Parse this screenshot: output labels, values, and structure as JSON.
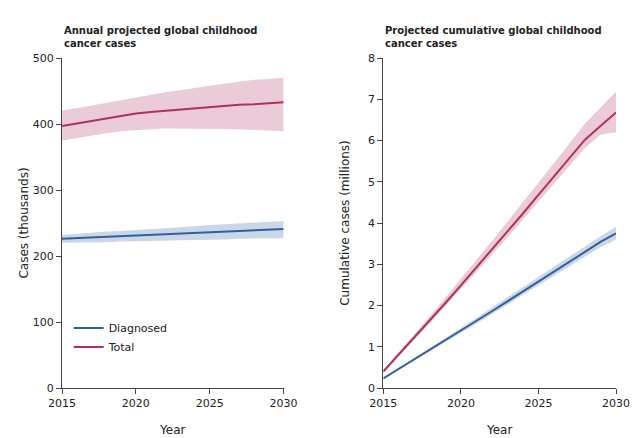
{
  "chart_data": [
    {
      "type": "line",
      "title": "Annual projected global childhood\ncancer cases",
      "xlabel": "Year",
      "ylabel": "Cases (thousands)",
      "x": [
        2015,
        2016,
        2017,
        2018,
        2019,
        2020,
        2021,
        2022,
        2023,
        2024,
        2025,
        2026,
        2027,
        2028,
        2029,
        2030
      ],
      "series": [
        {
          "name": "Total",
          "color": "#b03060",
          "values": [
            397,
            401,
            405,
            409,
            413,
            416,
            418,
            420,
            422,
            424,
            426,
            428,
            429,
            430,
            431,
            433
          ],
          "low": [
            375,
            379,
            383,
            386,
            389,
            391,
            392,
            393,
            393,
            393,
            393,
            393,
            392,
            391,
            390,
            389
          ],
          "high": [
            420,
            424,
            428,
            432,
            437,
            441,
            445,
            448,
            451,
            455,
            458,
            461,
            464,
            467,
            468,
            470
          ]
        },
        {
          "name": "Diagnosed",
          "color": "#3060a0",
          "values": [
            226,
            227,
            228,
            229,
            230,
            231,
            232,
            233,
            234,
            235,
            236,
            237,
            238,
            239,
            240,
            241
          ],
          "low": [
            220,
            220,
            221,
            221,
            222,
            222,
            223,
            223,
            224,
            224,
            225,
            225,
            226,
            226,
            227,
            227
          ],
          "high": [
            232,
            234,
            235,
            237,
            238,
            240,
            241,
            242,
            244,
            245,
            247,
            248,
            249,
            251,
            252,
            253
          ]
        }
      ],
      "xlim": [
        2015,
        2030
      ],
      "xticks": [
        2015,
        2020,
        2025,
        2030
      ],
      "ylim": [
        0,
        500
      ],
      "yticks": [
        0,
        100,
        200,
        300,
        400,
        500
      ],
      "grid": false,
      "legend": "lower left"
    },
    {
      "type": "line",
      "title": "Projected cumulative global childhood\ncancer cases",
      "xlabel": "Year",
      "ylabel": "Cumulative cases (millions)",
      "x": [
        2015,
        2016,
        2017,
        2018,
        2019,
        2020,
        2021,
        2022,
        2023,
        2024,
        2025,
        2026,
        2027,
        2028,
        2029,
        2030
      ],
      "series": [
        {
          "name": "Total",
          "color": "#b03060",
          "values": [
            0.4,
            0.81,
            1.22,
            1.64,
            2.06,
            2.49,
            2.92,
            3.35,
            3.79,
            4.23,
            4.68,
            5.12,
            5.57,
            6.02,
            6.35,
            6.68
          ],
          "low": [
            0.38,
            0.77,
            1.16,
            1.57,
            1.98,
            2.39,
            2.81,
            3.23,
            3.65,
            4.08,
            4.51,
            4.94,
            5.38,
            5.82,
            6.14,
            6.2
          ],
          "high": [
            0.42,
            0.86,
            1.3,
            1.74,
            2.19,
            2.65,
            3.1,
            3.56,
            4.03,
            4.5,
            4.97,
            5.45,
            5.93,
            6.41,
            6.8,
            7.18
          ]
        },
        {
          "name": "Diagnosed",
          "color": "#3060a0",
          "values": [
            0.23,
            0.46,
            0.69,
            0.92,
            1.15,
            1.39,
            1.62,
            1.86,
            2.1,
            2.34,
            2.58,
            2.82,
            3.07,
            3.31,
            3.54,
            3.75
          ],
          "low": [
            0.22,
            0.44,
            0.66,
            0.88,
            1.11,
            1.33,
            1.56,
            1.79,
            2.02,
            2.25,
            2.48,
            2.72,
            2.95,
            3.19,
            3.41,
            3.6
          ],
          "high": [
            0.24,
            0.48,
            0.72,
            0.97,
            1.21,
            1.46,
            1.7,
            1.95,
            2.2,
            2.44,
            2.69,
            2.94,
            3.19,
            3.44,
            3.68,
            3.91
          ]
        }
      ],
      "xlim": [
        2015,
        2030
      ],
      "xticks": [
        2015,
        2020,
        2025,
        2030
      ],
      "ylim": [
        0,
        8
      ],
      "yticks": [
        0,
        1,
        2,
        3,
        4,
        5,
        6,
        7,
        8
      ],
      "grid": false
    }
  ]
}
